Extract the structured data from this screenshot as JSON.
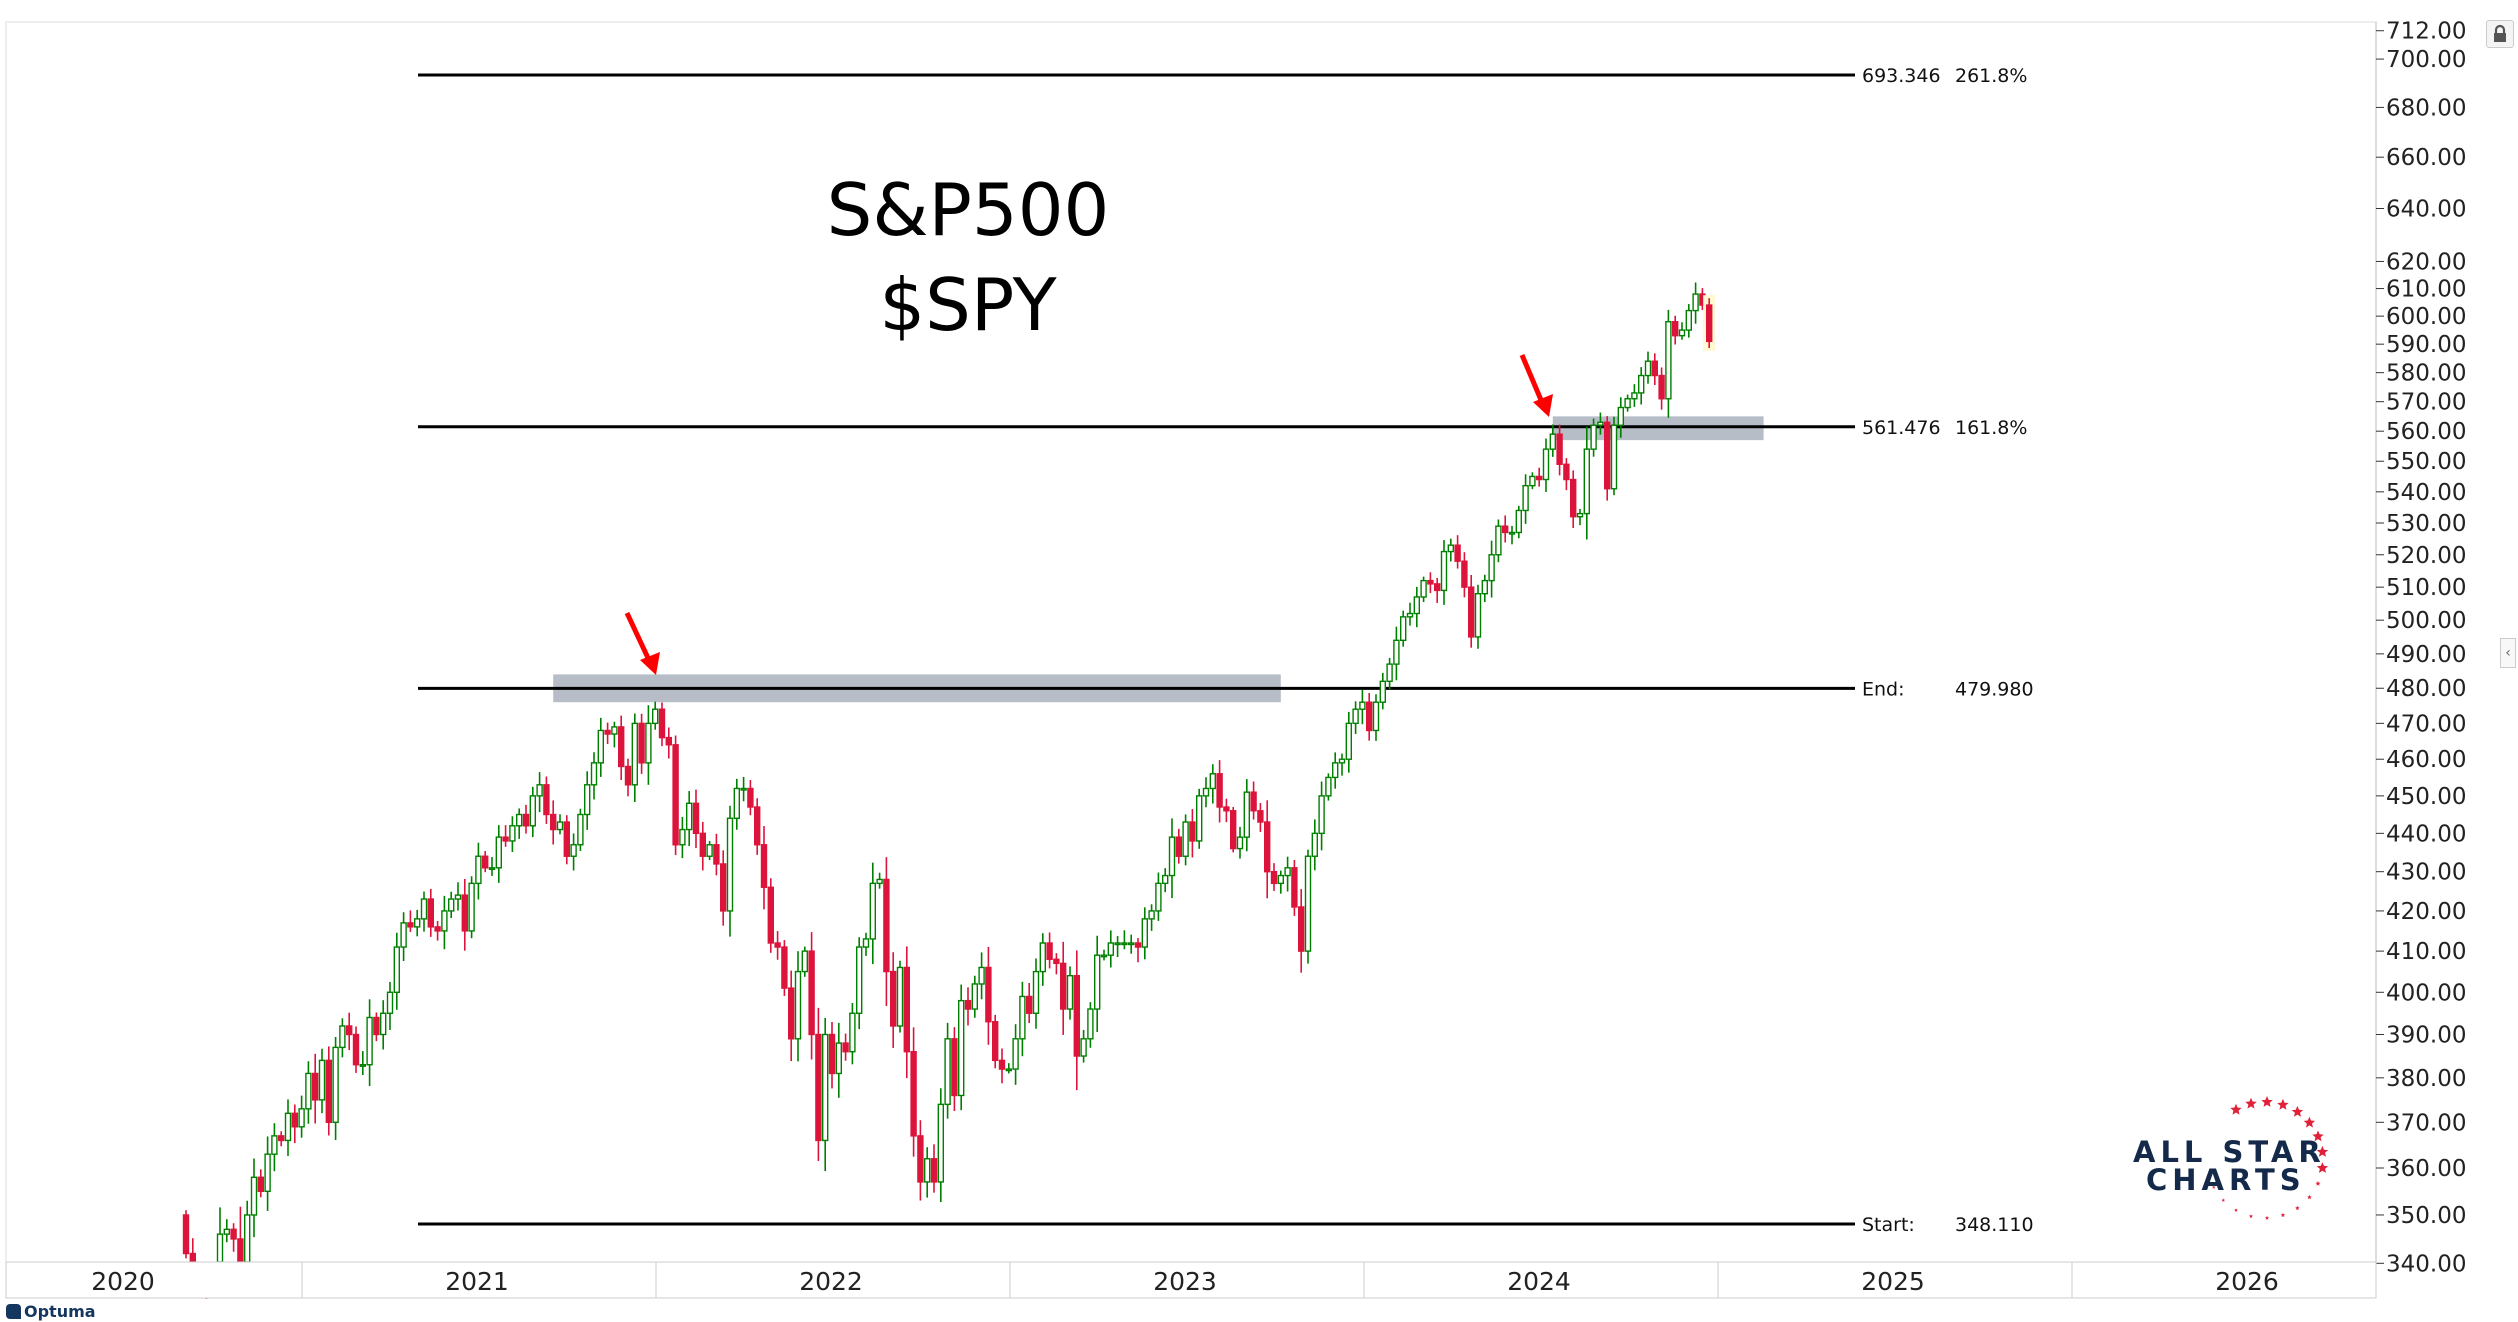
{
  "chart_data": {
    "type": "candlestick",
    "title": "S&P500",
    "subtitle": "$SPY",
    "interval": "weekly",
    "start_week": "2020-09-04",
    "first_open": 350,
    "closes": [
      342,
      334,
      330,
      328,
      334,
      346,
      347,
      345,
      326,
      350,
      358,
      355,
      363,
      367,
      366,
      372,
      369,
      373,
      381,
      375,
      384,
      370,
      387,
      392,
      390,
      383,
      383,
      394,
      390,
      395,
      400,
      411,
      417,
      416,
      418,
      423,
      416,
      415,
      420,
      423,
      424,
      415,
      427,
      434,
      431,
      431,
      439,
      438,
      442,
      445,
      442,
      450,
      453,
      445,
      441,
      443,
      434,
      437,
      445,
      453,
      459,
      468,
      467,
      469,
      458,
      453,
      470,
      459,
      470,
      474,
      466,
      464,
      437,
      441,
      448,
      440,
      434,
      437,
      432,
      420,
      444,
      452,
      452,
      447,
      437,
      426,
      412,
      411,
      401,
      389,
      405,
      410,
      390,
      366,
      390,
      381,
      388,
      386,
      395,
      411,
      413,
      427,
      428,
      405,
      392,
      406,
      386,
      367,
      357,
      362,
      357,
      374,
      389,
      376,
      398,
      396,
      402,
      406,
      393,
      384,
      382,
      382,
      389,
      399,
      395,
      405,
      412,
      408,
      407,
      396,
      404,
      385,
      389,
      396,
      409,
      409,
      412,
      412,
      412,
      412,
      411,
      418,
      420,
      427,
      429,
      439,
      434,
      443,
      438,
      450,
      452,
      456,
      447,
      446,
      436,
      439,
      451,
      446,
      443,
      430,
      427,
      429,
      431,
      421,
      410,
      434,
      440,
      450,
      455,
      459,
      460,
      470,
      474,
      476,
      468,
      476,
      482,
      487,
      494,
      501,
      502,
      507,
      512,
      511,
      509,
      521,
      523,
      518,
      510,
      495,
      508,
      512,
      520,
      529,
      527,
      527,
      534,
      542,
      545,
      544,
      554,
      559,
      549,
      544,
      532,
      533,
      554,
      562,
      563,
      541,
      562,
      568,
      571,
      573,
      579,
      584,
      579,
      571,
      598,
      593,
      595,
      602,
      608,
      604,
      591
    ],
    "y_axis": {
      "scale": "log",
      "range": [
        340,
        712
      ],
      "ticks": [
        "712.00",
        "700.00",
        "680.00",
        "660.00",
        "640.00",
        "620.00",
        "610.00",
        "600.00",
        "590.00",
        "580.00",
        "570.00",
        "560.00",
        "550.00",
        "540.00",
        "530.00",
        "520.00",
        "510.00",
        "500.00",
        "490.00",
        "480.00",
        "470.00",
        "460.00",
        "450.00",
        "440.00",
        "430.00",
        "420.00",
        "410.00",
        "400.00",
        "390.00",
        "380.00",
        "370.00",
        "360.00",
        "350.00",
        "340.00"
      ]
    },
    "x_axis": {
      "labels": [
        "2020",
        "2021",
        "2022",
        "2023",
        "2024",
        "2025",
        "2026"
      ]
    },
    "fib_levels": [
      {
        "value": 693.346,
        "label": "693.346",
        "pct": "261.8%"
      },
      {
        "value": 561.476,
        "label": "561.476",
        "pct": "161.8%"
      },
      {
        "value": 479.98,
        "label": "End:",
        "pct": "479.980"
      },
      {
        "value": 348.11,
        "label": "Start:",
        "pct": "348.110"
      }
    ],
    "resistance_zones": [
      {
        "from_week": 54,
        "to_week": 161,
        "low": 476,
        "high": 484
      },
      {
        "from_week": 201,
        "to_week": 232,
        "low": 557,
        "high": 565
      }
    ],
    "colors": {
      "up": "#008000",
      "down": "#dc143c",
      "fib": "#000000",
      "zone": "#a9b2bd",
      "arrow": "#ff0000"
    }
  },
  "branding": {
    "logo_line1": "ALL STAR",
    "logo_line2": "CHARTS",
    "platform": "Optuma"
  }
}
